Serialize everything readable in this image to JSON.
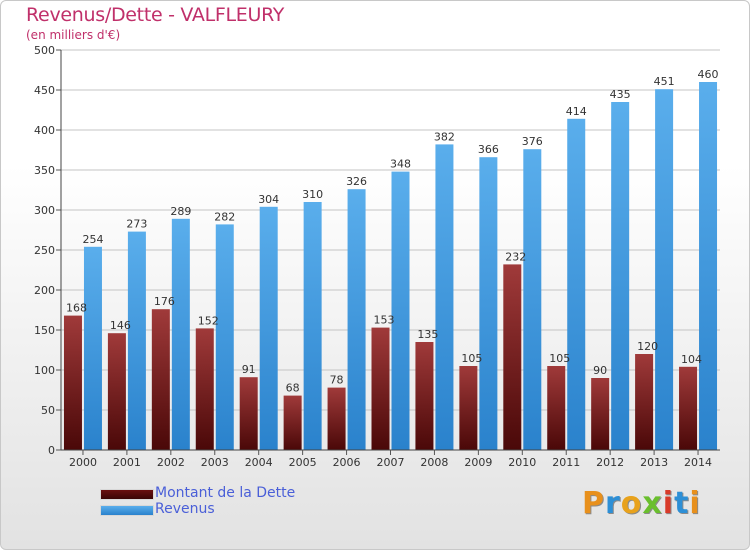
{
  "title": "Revenus/Dette - VALFLEURY",
  "subtitle": "(en milliers d'€)",
  "colors": {
    "dette": "#7a1f1f",
    "revenus": "#3a98df",
    "title": "#c0306a",
    "legend_text": "#4a5fd8"
  },
  "legend": [
    {
      "label": "Montant de la Dette",
      "color": "#7a1f1f"
    },
    {
      "label": "Revenus",
      "color": "#3a98df"
    }
  ],
  "logo": {
    "text": "Proxiti",
    "letters": [
      {
        "ch": "P",
        "color": "#e8901c"
      },
      {
        "ch": "r",
        "color": "#2d8fd6"
      },
      {
        "ch": "o",
        "color": "#e8a21c"
      },
      {
        "ch": "x",
        "color": "#6abf2e"
      },
      {
        "ch": "i",
        "color": "#d83b2a"
      },
      {
        "ch": "t",
        "color": "#2d8fd6"
      },
      {
        "ch": "i",
        "color": "#e8901c"
      }
    ]
  },
  "chart_data": {
    "type": "bar",
    "title": "Revenus/Dette - VALFLEURY",
    "ylabel": "(en milliers d'€)",
    "xlabel": "",
    "categories": [
      "2000",
      "2001",
      "2002",
      "2003",
      "2004",
      "2005",
      "2006",
      "2007",
      "2008",
      "2009",
      "2010",
      "2011",
      "2012",
      "2013",
      "2014"
    ],
    "ylim": [
      0,
      500
    ],
    "yticks": [
      0,
      50,
      100,
      150,
      200,
      250,
      300,
      350,
      400,
      450,
      500
    ],
    "grid": true,
    "legend_position": "bottom-left",
    "series": [
      {
        "name": "Montant de la Dette",
        "values": [
          168,
          146,
          176,
          152,
          91,
          68,
          78,
          153,
          135,
          105,
          232,
          105,
          90,
          120,
          104
        ]
      },
      {
        "name": "Revenus",
        "values": [
          254,
          273,
          289,
          282,
          304,
          310,
          326,
          348,
          382,
          366,
          376,
          414,
          435,
          451,
          460
        ]
      }
    ]
  }
}
